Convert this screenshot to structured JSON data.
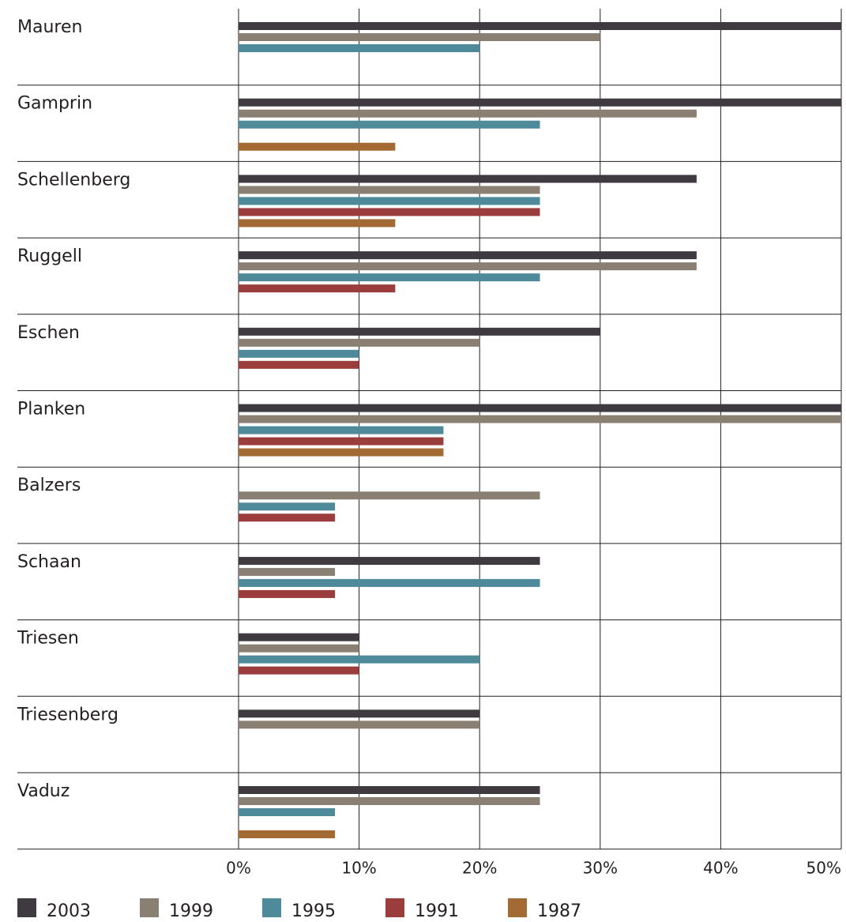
{
  "chart_data": {
    "type": "bar",
    "orientation": "horizontal",
    "title": "",
    "xlabel": "",
    "ylabel": "",
    "xlim": [
      0,
      50
    ],
    "grid": true,
    "legend_position": "bottom",
    "categories": [
      "Mauren",
      "Gamprin",
      "Schellenberg",
      "Ruggell",
      "Eschen",
      "Planken",
      "Balzers",
      "Schaan",
      "Triesen",
      "Triesenberg",
      "Vaduz"
    ],
    "x_ticks": [
      "0%",
      "10%",
      "20%",
      "30%",
      "40%",
      "50%"
    ],
    "series": [
      {
        "name": "2003",
        "color": "#3e3a3f",
        "values": [
          50,
          50,
          38,
          38,
          30,
          50,
          null,
          25,
          10,
          20,
          25
        ]
      },
      {
        "name": "1999",
        "color": "#8a7f73",
        "values": [
          30,
          38,
          25,
          38,
          20,
          50,
          25,
          8,
          10,
          20,
          25
        ]
      },
      {
        "name": "1995",
        "color": "#4e8a9a",
        "values": [
          20,
          25,
          25,
          25,
          10,
          17,
          8,
          25,
          20,
          null,
          8
        ]
      },
      {
        "name": "1991",
        "color": "#9b3d3c",
        "values": [
          null,
          null,
          25,
          13,
          10,
          17,
          8,
          8,
          10,
          null,
          null
        ]
      },
      {
        "name": "1987",
        "color": "#a36a34",
        "values": [
          null,
          13,
          13,
          null,
          null,
          17,
          null,
          null,
          null,
          null,
          8
        ]
      }
    ]
  }
}
